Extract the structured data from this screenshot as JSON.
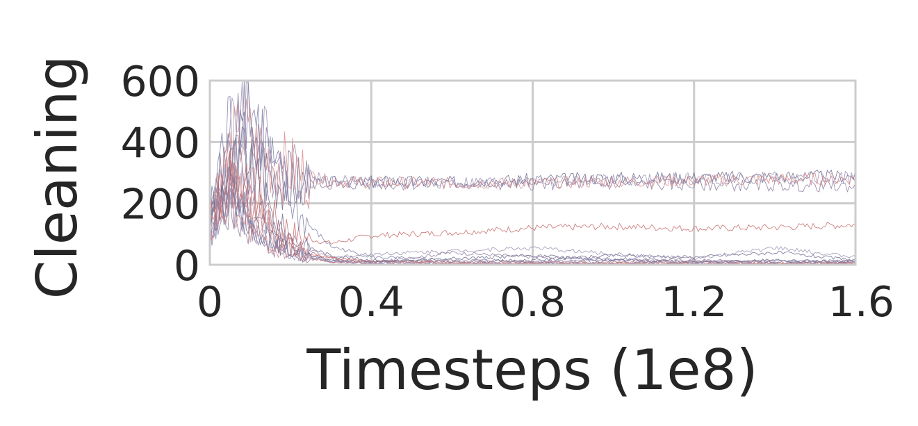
{
  "chart_data": {
    "type": "line",
    "title": "",
    "xlabel": "Timesteps (1e8)",
    "ylabel": "Cleaning",
    "xlim": [
      0,
      1.6
    ],
    "ylim": [
      0,
      600
    ],
    "xticks": [
      0,
      0.4,
      0.8,
      1.2,
      1.6
    ],
    "xtick_labels": [
      "0",
      "0.4",
      "0.8",
      "1.2",
      "1.6"
    ],
    "yticks": [
      0,
      200,
      400,
      600
    ],
    "ytick_labels": [
      "0",
      "200",
      "400",
      "600"
    ],
    "grid": true,
    "legend": "none",
    "series_colors": [
      "#6e6a8e",
      "#9b8fb0",
      "#8c7aa0",
      "#d98a8a",
      "#c56a6a",
      "#7d7fa8"
    ],
    "series": [
      {
        "x": [
          0,
          0.02,
          0.05,
          0.08,
          0.12,
          0.16,
          0.22,
          0.3,
          0.4,
          0.6,
          0.8,
          1.0,
          1.2,
          1.4,
          1.6
        ],
        "values": [
          120,
          260,
          330,
          400,
          330,
          290,
          270,
          268,
          272,
          270,
          278,
          283,
          285,
          287,
          290
        ]
      },
      {
        "x": [
          0,
          0.02,
          0.05,
          0.08,
          0.12,
          0.16,
          0.22,
          0.3,
          0.4,
          0.6,
          0.8,
          1.0,
          1.2,
          1.4,
          1.6
        ],
        "values": [
          140,
          300,
          380,
          560,
          420,
          340,
          300,
          275,
          270,
          268,
          270,
          275,
          280,
          283,
          285
        ]
      },
      {
        "x": [
          0,
          0.02,
          0.05,
          0.08,
          0.12,
          0.16,
          0.22,
          0.3,
          0.4,
          0.6,
          0.8,
          1.0,
          1.2,
          1.4,
          1.6
        ],
        "values": [
          110,
          250,
          310,
          340,
          300,
          280,
          265,
          262,
          262,
          262,
          262,
          262,
          260,
          258,
          255
        ]
      },
      {
        "x": [
          0,
          0.02,
          0.05,
          0.08,
          0.12,
          0.16,
          0.22,
          0.3,
          0.4,
          0.6,
          0.8,
          1.0,
          1.2,
          1.4,
          1.6
        ],
        "values": [
          130,
          270,
          360,
          430,
          370,
          330,
          300,
          272,
          268,
          265,
          266,
          270,
          274,
          278,
          280
        ]
      },
      {
        "x": [
          0,
          0.02,
          0.05,
          0.08,
          0.12,
          0.16,
          0.22,
          0.3,
          0.4,
          0.6,
          0.8,
          1.0,
          1.2,
          1.4,
          1.6
        ],
        "values": [
          100,
          200,
          280,
          260,
          220,
          150,
          90,
          70,
          95,
          105,
          120,
          125,
          118,
          122,
          130
        ]
      },
      {
        "x": [
          0,
          0.02,
          0.05,
          0.08,
          0.12,
          0.16,
          0.22,
          0.3,
          0.4,
          0.6,
          0.8,
          1.0,
          1.2,
          1.4,
          1.6
        ],
        "values": [
          150,
          320,
          450,
          590,
          450,
          300,
          160,
          60,
          25,
          15,
          12,
          15,
          10,
          12,
          10
        ]
      },
      {
        "x": [
          0,
          0.02,
          0.05,
          0.08,
          0.12,
          0.16,
          0.22,
          0.3,
          0.4,
          0.6,
          0.8,
          1.0,
          1.2,
          1.4,
          1.6
        ],
        "values": [
          120,
          240,
          300,
          350,
          250,
          140,
          70,
          30,
          15,
          10,
          15,
          30,
          25,
          40,
          15
        ]
      },
      {
        "x": [
          0,
          0.02,
          0.05,
          0.08,
          0.12,
          0.16,
          0.22,
          0.3,
          0.4,
          0.6,
          0.8,
          1.0,
          1.2,
          1.4,
          1.6
        ],
        "values": [
          110,
          210,
          260,
          280,
          200,
          110,
          55,
          25,
          35,
          45,
          55,
          35,
          20,
          55,
          25
        ]
      },
      {
        "x": [
          0,
          0.02,
          0.05,
          0.08,
          0.12,
          0.16,
          0.22,
          0.3,
          0.4,
          0.6,
          0.8,
          1.0,
          1.2,
          1.4,
          1.6
        ],
        "values": [
          90,
          180,
          220,
          210,
          150,
          80,
          40,
          15,
          10,
          8,
          8,
          10,
          8,
          8,
          8
        ]
      },
      {
        "x": [
          0,
          0.02,
          0.05,
          0.08,
          0.12,
          0.16,
          0.22,
          0.3,
          0.4,
          0.6,
          0.8,
          1.0,
          1.2,
          1.4,
          1.6
        ],
        "values": [
          100,
          190,
          240,
          220,
          160,
          90,
          45,
          20,
          12,
          10,
          8,
          8,
          10,
          6,
          6
        ]
      },
      {
        "x": [
          0,
          0.02,
          0.05,
          0.08,
          0.12,
          0.16,
          0.22,
          0.3,
          0.4,
          0.6,
          0.8,
          1.0,
          1.2,
          1.4,
          1.6
        ],
        "values": [
          130,
          230,
          290,
          260,
          180,
          100,
          50,
          22,
          10,
          6,
          5,
          5,
          5,
          5,
          5
        ]
      },
      {
        "x": [
          0,
          0.02,
          0.05,
          0.08,
          0.12,
          0.16,
          0.22,
          0.3,
          0.4,
          0.6,
          0.8,
          1.0,
          1.2,
          1.4,
          1.6
        ],
        "values": [
          80,
          150,
          190,
          170,
          110,
          60,
          30,
          12,
          6,
          4,
          4,
          4,
          4,
          4,
          4
        ]
      },
      {
        "x": [
          0,
          0.02,
          0.05,
          0.08,
          0.12,
          0.16,
          0.22,
          0.3,
          0.4,
          0.6,
          0.8,
          1.0,
          1.2,
          1.4,
          1.6
        ],
        "values": [
          140,
          200,
          240,
          180,
          120,
          70,
          35,
          15,
          8,
          20,
          30,
          15,
          10,
          15,
          10
        ]
      },
      {
        "x": [
          0,
          0.02,
          0.05,
          0.08,
          0.12,
          0.16,
          0.22,
          0.3,
          0.4,
          0.6,
          0.8,
          1.0,
          1.2,
          1.4,
          1.6
        ],
        "values": [
          120,
          170,
          200,
          150,
          100,
          55,
          28,
          10,
          5,
          3,
          3,
          3,
          3,
          3,
          3
        ]
      },
      {
        "x": [
          0,
          0.02,
          0.05,
          0.08,
          0.12,
          0.16,
          0.22,
          0.3,
          0.4,
          0.6,
          0.8,
          1.0,
          1.2,
          1.4,
          1.6
        ],
        "values": [
          90,
          140,
          170,
          130,
          90,
          50,
          25,
          10,
          6,
          40,
          25,
          20,
          15,
          10,
          12
        ]
      },
      {
        "x": [
          0,
          0.02,
          0.05,
          0.08,
          0.12,
          0.16,
          0.22,
          0.3,
          0.4,
          0.6,
          0.8,
          1.0,
          1.2,
          1.4,
          1.6
        ],
        "values": [
          110,
          160,
          180,
          140,
          95,
          50,
          24,
          10,
          4,
          2,
          2,
          2,
          2,
          2,
          2
        ]
      }
    ]
  }
}
